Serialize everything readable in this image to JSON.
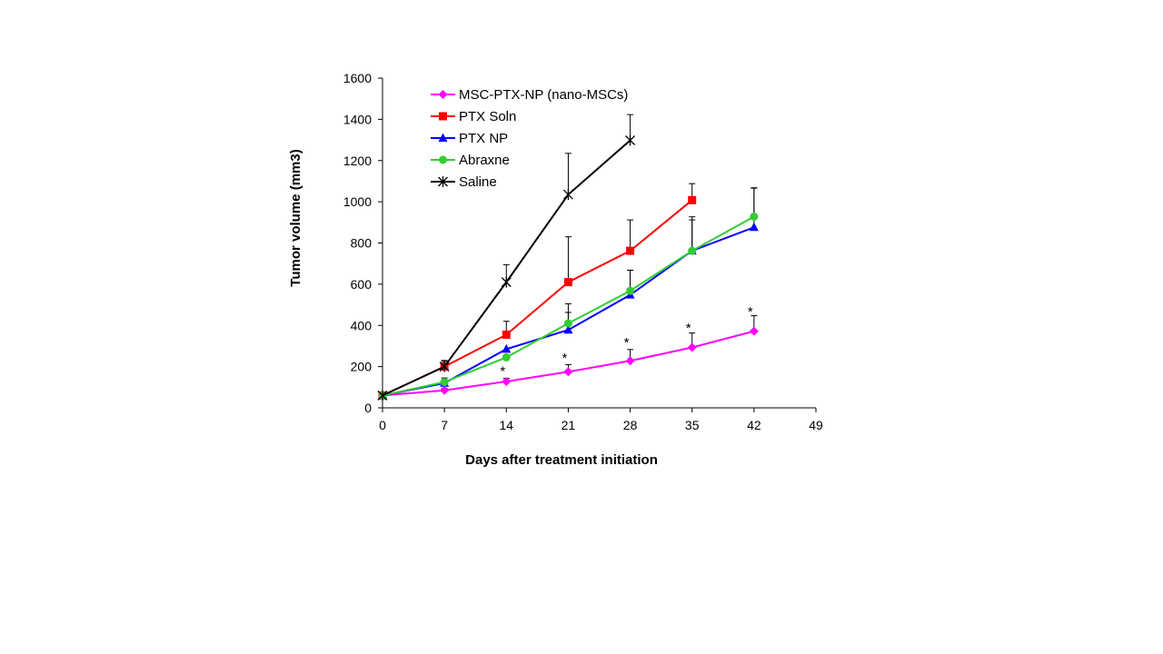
{
  "chart_data": {
    "type": "line",
    "xlabel": "Days after treatment initiation",
    "ylabel": "Tumor volume (mm3)",
    "xlim": [
      0,
      49
    ],
    "ylim": [
      0,
      1600
    ],
    "xticks": [
      0,
      7,
      14,
      21,
      28,
      35,
      42,
      49
    ],
    "yticks": [
      0,
      200,
      400,
      600,
      800,
      1000,
      1200,
      1400,
      1600
    ],
    "legend_position": "top-left",
    "grid": false,
    "series": [
      {
        "name": "MSC-PTX-NP (nano-MSCs)",
        "color": "#ff00ff",
        "marker": "diamond",
        "x": [
          0,
          7,
          14,
          21,
          28,
          35,
          42
        ],
        "y": [
          60,
          85,
          128,
          175,
          228,
          293,
          372
        ],
        "error": [
          5,
          10,
          15,
          35,
          55,
          70,
          75
        ]
      },
      {
        "name": "PTX Soln",
        "color": "#ff0000",
        "marker": "square",
        "x": [
          0,
          7,
          14,
          21,
          28,
          35
        ],
        "y": [
          60,
          200,
          355,
          610,
          762,
          1008
        ],
        "error": [
          5,
          25,
          65,
          220,
          150,
          80
        ]
      },
      {
        "name": "PTX NP",
        "color": "#0000ff",
        "marker": "triangle",
        "x": [
          0,
          7,
          14,
          21,
          28,
          35,
          42
        ],
        "y": [
          60,
          120,
          285,
          378,
          548,
          762,
          876
        ],
        "error": [
          5,
          15,
          0,
          85,
          120,
          165,
          190
        ]
      },
      {
        "name": "Abraxne",
        "color": "#33cc33",
        "marker": "circle",
        "x": [
          0,
          7,
          14,
          21,
          28,
          35,
          42
        ],
        "y": [
          60,
          125,
          245,
          410,
          568,
          762,
          928
        ],
        "error": [
          5,
          20,
          0,
          95,
          100,
          150,
          140
        ]
      },
      {
        "name": "Saline",
        "color": "#000000",
        "marker": "star",
        "x": [
          0,
          7,
          14,
          21,
          28
        ],
        "y": [
          60,
          200,
          610,
          1035,
          1298
        ],
        "error": [
          5,
          30,
          85,
          200,
          125
        ]
      }
    ],
    "annotations": [
      {
        "text": "*",
        "x": 14,
        "y": 200
      },
      {
        "text": "*",
        "x": 21,
        "y": 265
      },
      {
        "text": "*",
        "x": 28,
        "y": 340
      },
      {
        "text": "*",
        "x": 35,
        "y": 410
      },
      {
        "text": "*",
        "x": 42,
        "y": 490
      }
    ]
  }
}
